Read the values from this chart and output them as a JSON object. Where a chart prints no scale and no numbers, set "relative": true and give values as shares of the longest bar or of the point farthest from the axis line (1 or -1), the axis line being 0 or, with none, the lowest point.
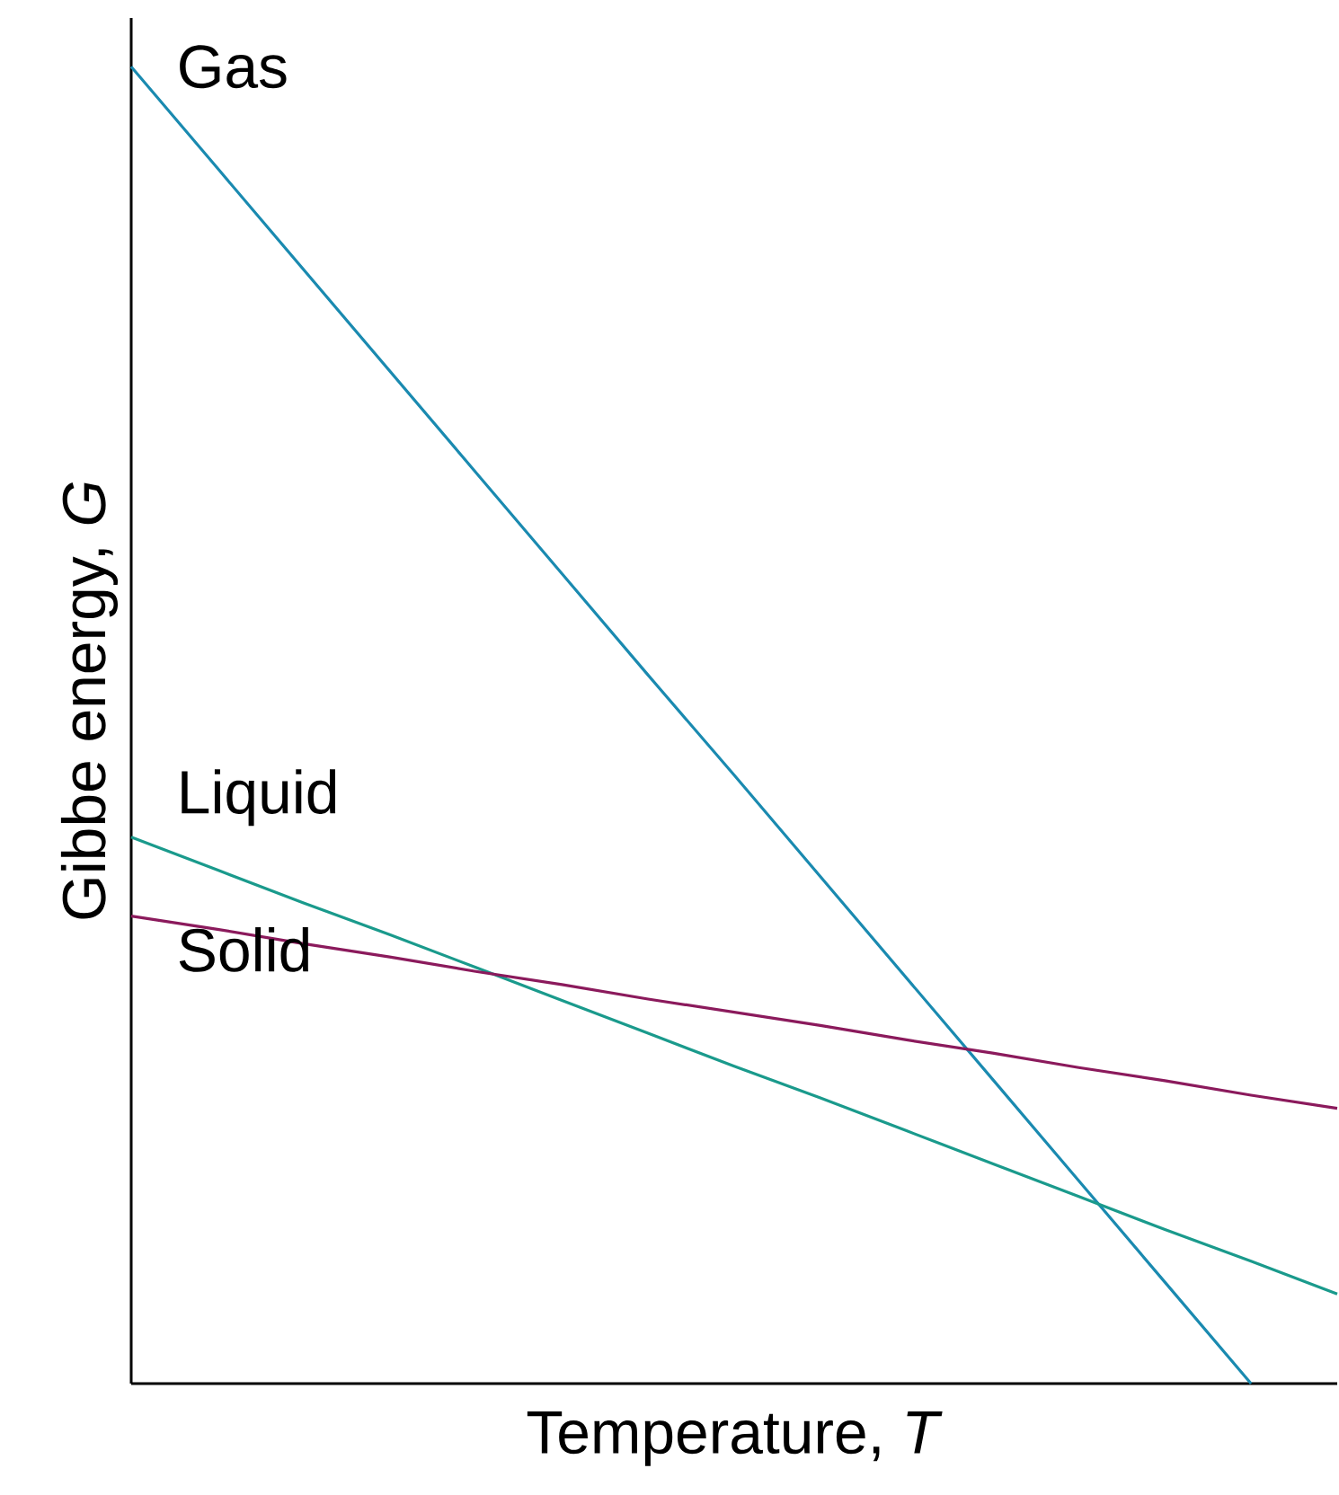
{
  "chart_data": {
    "type": "line",
    "relative": true,
    "xlabel": "Temperature, *T*",
    "ylabel": "Gibbe energy, *G*",
    "categories": [
      null,
      null,
      null,
      null,
      null,
      null,
      null,
      null,
      null,
      null,
      null,
      null,
      null,
      null,
      null
    ],
    "series": [
      {
        "name": "Gas",
        "color": "#1a8ab0",
        "values": [
          1,
          0.923,
          0.846,
          0.769,
          0.692,
          0.615,
          0.538,
          0.462,
          0.385,
          0.308,
          0.231,
          0.154,
          0.077,
          0,
          null
        ]
      },
      {
        "name": "Liquid",
        "color": "#1a9a8c",
        "values": [
          0.415,
          0.39,
          0.365,
          0.341,
          0.316,
          0.291,
          0.266,
          0.241,
          0.217,
          0.192,
          0.167,
          0.142,
          0.117,
          0.093,
          0.068
        ]
      },
      {
        "name": "Solid",
        "color": "#8b1a5c",
        "values": [
          0.355,
          0.345,
          0.334,
          0.324,
          0.313,
          0.303,
          0.292,
          0.282,
          0.272,
          0.261,
          0.251,
          0.24,
          0.23,
          0.219,
          0.209
        ]
      }
    ]
  }
}
